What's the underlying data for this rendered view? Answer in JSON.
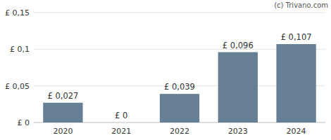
{
  "chart_data": {
    "type": "bar",
    "annotations": [
      "(c) Trivano.com"
    ],
    "categories": [
      "2020",
      "2021",
      "2022",
      "2023",
      "2024"
    ],
    "values": [
      0.027,
      0,
      0.039,
      0.096,
      0.107
    ],
    "value_labels": [
      "£ 0,027",
      "£ 0",
      "£ 0,039",
      "£ 0,096",
      "£ 0,107"
    ],
    "color": "#667f94",
    "ylim": [
      0,
      0.15
    ],
    "yticks": [
      {
        "value": 0,
        "label": "£ 0"
      },
      {
        "value": 0.05,
        "label": "£ 0,05"
      },
      {
        "value": 0.1,
        "label": "£ 0,1"
      },
      {
        "value": 0.15,
        "label": "£ 0,15"
      }
    ],
    "grid": true,
    "data_labels": true
  }
}
